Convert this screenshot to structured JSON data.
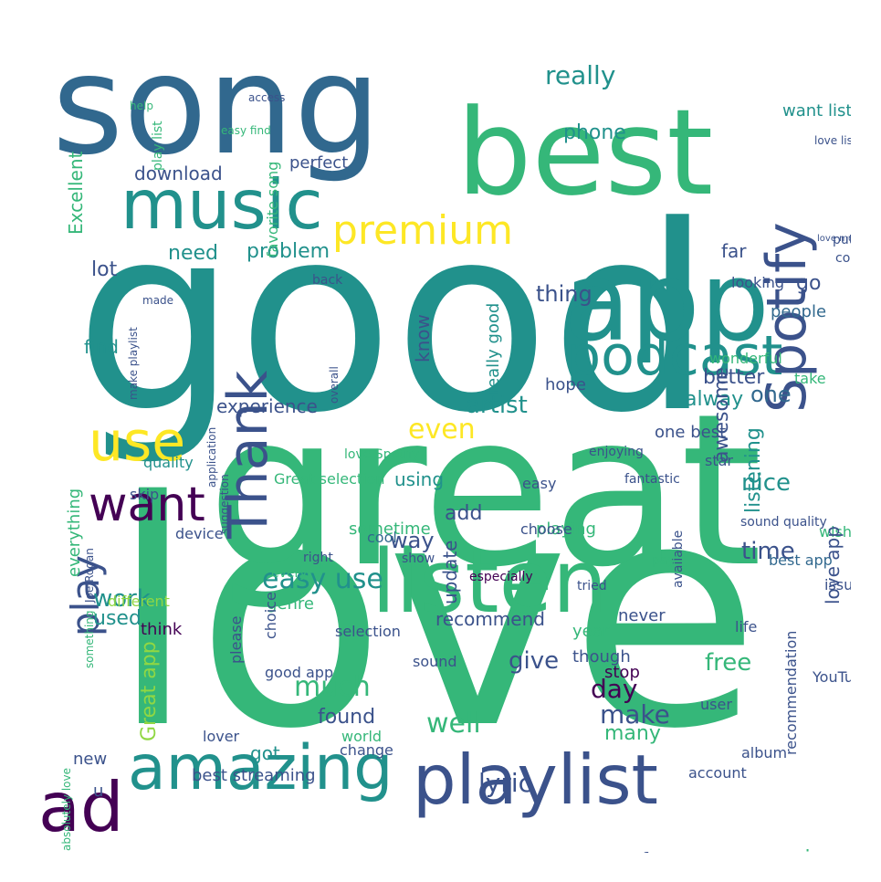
{
  "palette": {
    "purple": "#440154",
    "indigo": "#3b528b",
    "blue": "#31688e",
    "teal": "#21918c",
    "green": "#35b779",
    "lime": "#90d743",
    "yellow": "#fde725"
  },
  "words": [
    {
      "text": "love",
      "color": "#35b779"
    },
    {
      "text": "good",
      "color": "#21918c"
    },
    {
      "text": "great",
      "color": "#35b779"
    },
    {
      "text": "song",
      "color": "#31688e"
    },
    {
      "text": "best",
      "color": "#35b779"
    },
    {
      "text": "app",
      "color": "#21918c"
    },
    {
      "text": "music",
      "color": "#21918c"
    },
    {
      "text": "listen",
      "color": "#35b779"
    },
    {
      "text": "playlist",
      "color": "#3b528b"
    },
    {
      "text": "amazing",
      "color": "#21918c"
    },
    {
      "text": "ad",
      "color": "#440154"
    },
    {
      "text": "use",
      "color": "#fde725"
    },
    {
      "text": "want",
      "color": "#440154"
    },
    {
      "text": "podcast",
      "color": "#21918c"
    },
    {
      "text": "premium",
      "color": "#fde725"
    },
    {
      "text": "Spotify",
      "color": "#3b528b"
    },
    {
      "text": "Thank",
      "color": "#3b528b"
    },
    {
      "text": "play",
      "color": "#3b528b"
    },
    {
      "text": "easy use",
      "color": "#21918c"
    },
    {
      "text": "really",
      "color": "#21918c"
    },
    {
      "text": "phone",
      "color": "#21918c"
    },
    {
      "text": "download",
      "color": "#3b528b"
    },
    {
      "text": "problem",
      "color": "#21918c"
    },
    {
      "text": "need",
      "color": "#21918c"
    },
    {
      "text": "thing",
      "color": "#3b528b"
    },
    {
      "text": "one",
      "color": "#31688e"
    },
    {
      "text": "artist",
      "color": "#21918c"
    },
    {
      "text": "better",
      "color": "#3b528b"
    },
    {
      "text": "alway",
      "color": "#21918c"
    },
    {
      "text": "awesome",
      "color": "#3b528b"
    },
    {
      "text": "experience",
      "color": "#3b528b"
    },
    {
      "text": "even",
      "color": "#fde725"
    },
    {
      "text": "listening",
      "color": "#21918c"
    },
    {
      "text": "nice",
      "color": "#21918c"
    },
    {
      "text": "time",
      "color": "#3b528b"
    },
    {
      "text": "work",
      "color": "#21918c"
    },
    {
      "text": "used",
      "color": "#21918c"
    },
    {
      "text": "much",
      "color": "#35b779"
    },
    {
      "text": "give",
      "color": "#3b528b"
    },
    {
      "text": "free",
      "color": "#35b779"
    },
    {
      "text": "well",
      "color": "#35b779"
    },
    {
      "text": "lyric",
      "color": "#3b528b"
    },
    {
      "text": "make",
      "color": "#3b528b"
    },
    {
      "text": "day",
      "color": "#440154"
    },
    {
      "text": "found",
      "color": "#3b528b"
    },
    {
      "text": "Great app",
      "color": "#90d743"
    },
    {
      "text": "add",
      "color": "#3b528b"
    },
    {
      "text": "way",
      "color": "#3b528b"
    },
    {
      "text": "recommend",
      "color": "#3b528b"
    },
    {
      "text": "option",
      "color": "#35b779"
    },
    {
      "text": "still",
      "color": "#35b779"
    },
    {
      "text": "keep",
      "color": "#3b528b"
    },
    {
      "text": "feature",
      "color": "#3b528b"
    },
    {
      "text": "enjoy",
      "color": "#35b779"
    },
    {
      "text": "service",
      "color": "#35b779"
    },
    {
      "text": "best streaming",
      "color": "#3b528b"
    },
    {
      "text": "got",
      "color": "#21918c"
    },
    {
      "text": "happy",
      "color": "#35b779"
    },
    {
      "text": "many",
      "color": "#35b779"
    },
    {
      "text": "new",
      "color": "#3b528b"
    },
    {
      "text": "u",
      "color": "#3b528b"
    },
    {
      "text": "update",
      "color": "#3b528b"
    },
    {
      "text": "using",
      "color": "#21918c"
    },
    {
      "text": "Excellent",
      "color": "#35b779"
    },
    {
      "text": "find",
      "color": "#21918c"
    },
    {
      "text": "lot",
      "color": "#3b528b"
    },
    {
      "text": "everything",
      "color": "#35b779"
    },
    {
      "text": "go",
      "color": "#3b528b"
    },
    {
      "text": "people",
      "color": "#31688e"
    },
    {
      "text": "perfect",
      "color": "#3b528b"
    },
    {
      "text": "favorite song",
      "color": "#35b779"
    },
    {
      "text": "far",
      "color": "#3b528b"
    },
    {
      "text": "want listen",
      "color": "#21918c"
    },
    {
      "text": "hope",
      "color": "#3b528b"
    },
    {
      "text": "one best",
      "color": "#3b528b"
    },
    {
      "text": "star",
      "color": "#3b528b"
    },
    {
      "text": "playing",
      "color": "#35b779"
    },
    {
      "text": "Great selection",
      "color": "#35b779"
    },
    {
      "text": "though",
      "color": "#3b528b"
    },
    {
      "text": "choose",
      "color": "#3b528b"
    },
    {
      "text": "cool",
      "color": "#31688e"
    },
    {
      "text": "really good",
      "color": "#21918c"
    },
    {
      "text": "know",
      "color": "#3b528b"
    },
    {
      "text": "sometime",
      "color": "#35b779"
    },
    {
      "text": "quality",
      "color": "#21918c"
    },
    {
      "text": "skip",
      "color": "#3b528b"
    },
    {
      "text": "device",
      "color": "#3b528b"
    },
    {
      "text": "different",
      "color": "#90d743"
    },
    {
      "text": "think",
      "color": "#440154"
    },
    {
      "text": "genre",
      "color": "#35b779"
    },
    {
      "text": "selection",
      "color": "#3b528b"
    },
    {
      "text": "good app",
      "color": "#3b528b"
    },
    {
      "text": "choice",
      "color": "#3b528b"
    },
    {
      "text": "please",
      "color": "#3b528b"
    },
    {
      "text": "sound",
      "color": "#3b528b"
    },
    {
      "text": "stop",
      "color": "#440154"
    },
    {
      "text": "year",
      "color": "#35b779"
    },
    {
      "text": "never",
      "color": "#3b528b"
    },
    {
      "text": "life",
      "color": "#3b528b"
    },
    {
      "text": "user",
      "color": "#3b528b"
    },
    {
      "text": "YouTube",
      "color": "#3b528b"
    },
    {
      "text": "lover",
      "color": "#3b528b"
    },
    {
      "text": "world",
      "color": "#35b779"
    },
    {
      "text": "change",
      "color": "#3b528b"
    },
    {
      "text": "album",
      "color": "#3b528b"
    },
    {
      "text": "try",
      "color": "#35b779"
    },
    {
      "text": "guy",
      "color": "#3b528b"
    },
    {
      "text": "account",
      "color": "#3b528b"
    },
    {
      "text": "recommendation",
      "color": "#3b528b"
    },
    {
      "text": "wish",
      "color": "#35b779"
    },
    {
      "text": "issue",
      "color": "#3b528b"
    },
    {
      "text": "love app",
      "color": "#3b528b"
    },
    {
      "text": "available",
      "color": "#3b528b"
    },
    {
      "text": "best app",
      "color": "#31688e"
    },
    {
      "text": "take",
      "color": "#35b779"
    },
    {
      "text": "wonderful",
      "color": "#35b779"
    },
    {
      "text": "looking",
      "color": "#3b528b"
    },
    {
      "text": "sound quality",
      "color": "#3b528b"
    },
    {
      "text": "fantastic",
      "color": "#3b528b"
    },
    {
      "text": "enjoying",
      "color": "#3b528b"
    },
    {
      "text": "especially",
      "color": "#440154"
    },
    {
      "text": "tried",
      "color": "#3b528b"
    },
    {
      "text": "pay",
      "color": "#35b779"
    },
    {
      "text": "easy",
      "color": "#3b528b"
    },
    {
      "text": "right",
      "color": "#3b528b"
    },
    {
      "text": "every",
      "color": "#35b779"
    },
    {
      "text": "show",
      "color": "#3b528b"
    },
    {
      "text": "come",
      "color": "#3b528b"
    },
    {
      "text": "put",
      "color": "#3b528b"
    },
    {
      "text": "love listening",
      "color": "#3b528b"
    },
    {
      "text": "back",
      "color": "#3b528b"
    },
    {
      "text": "made",
      "color": "#3b528b"
    },
    {
      "text": "help",
      "color": "#35b779"
    },
    {
      "text": "play list",
      "color": "#35b779"
    },
    {
      "text": "access",
      "color": "#3b528b"
    },
    {
      "text": "easy find",
      "color": "#35b779"
    },
    {
      "text": "love much",
      "color": "#3b528b"
    },
    {
      "text": "make playlist",
      "color": "#3b528b"
    },
    {
      "text": "application",
      "color": "#3b528b"
    },
    {
      "text": "suggestion",
      "color": "#3b528b"
    },
    {
      "text": "love Spotify",
      "color": "#35b779"
    },
    {
      "text": "overall",
      "color": "#3b528b"
    },
    {
      "text": "absolutely love",
      "color": "#35b779"
    },
    {
      "text": "something",
      "color": "#35b779"
    },
    {
      "text": "Joe Rogan",
      "color": "#3b528b"
    }
  ]
}
